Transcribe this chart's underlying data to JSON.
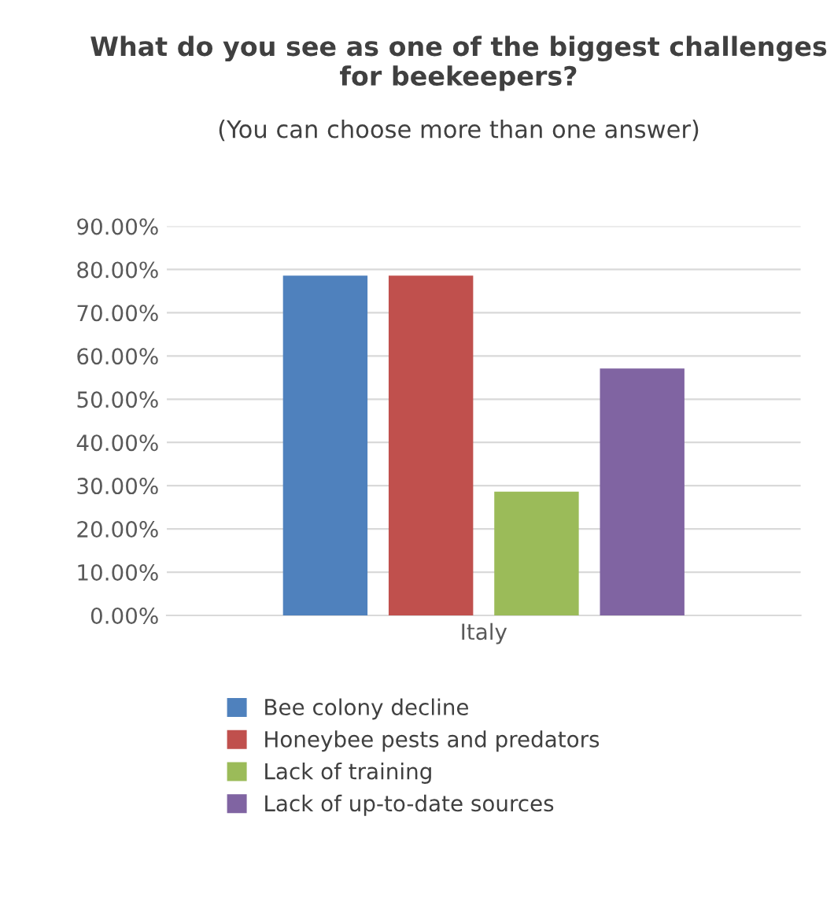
{
  "chart_data": {
    "type": "bar",
    "title": "What do you see as one of the biggest challenges for beekeepers?",
    "subtitle": "(You can choose more than one answer)",
    "categories": [
      "Italy"
    ],
    "series": [
      {
        "name": "Bee colony decline",
        "color": "#4f81bd",
        "values": [
          78.6
        ]
      },
      {
        "name": "Honeybee pests and predators",
        "color": "#c0504d",
        "values": [
          78.6
        ]
      },
      {
        "name": "Lack of training",
        "color": "#9bbb59",
        "values": [
          28.6
        ]
      },
      {
        "name": "Lack of up-to-date sources",
        "color": "#8064a2",
        "values": [
          57.1
        ]
      }
    ],
    "ylim": [
      0,
      90
    ],
    "yticks": [
      {
        "value": 0,
        "label": "0.00%"
      },
      {
        "value": 10,
        "label": "10.00%"
      },
      {
        "value": 20,
        "label": "20.00%"
      },
      {
        "value": 30,
        "label": "30.00%"
      },
      {
        "value": 40,
        "label": "40.00%"
      },
      {
        "value": 50,
        "label": "50.00%"
      },
      {
        "value": 60,
        "label": "60.00%"
      },
      {
        "value": 70,
        "label": "70.00%"
      },
      {
        "value": 80,
        "label": "80.00%"
      },
      {
        "value": 90,
        "label": "90.00%"
      }
    ],
    "grid": "y",
    "legend": "bottom"
  }
}
